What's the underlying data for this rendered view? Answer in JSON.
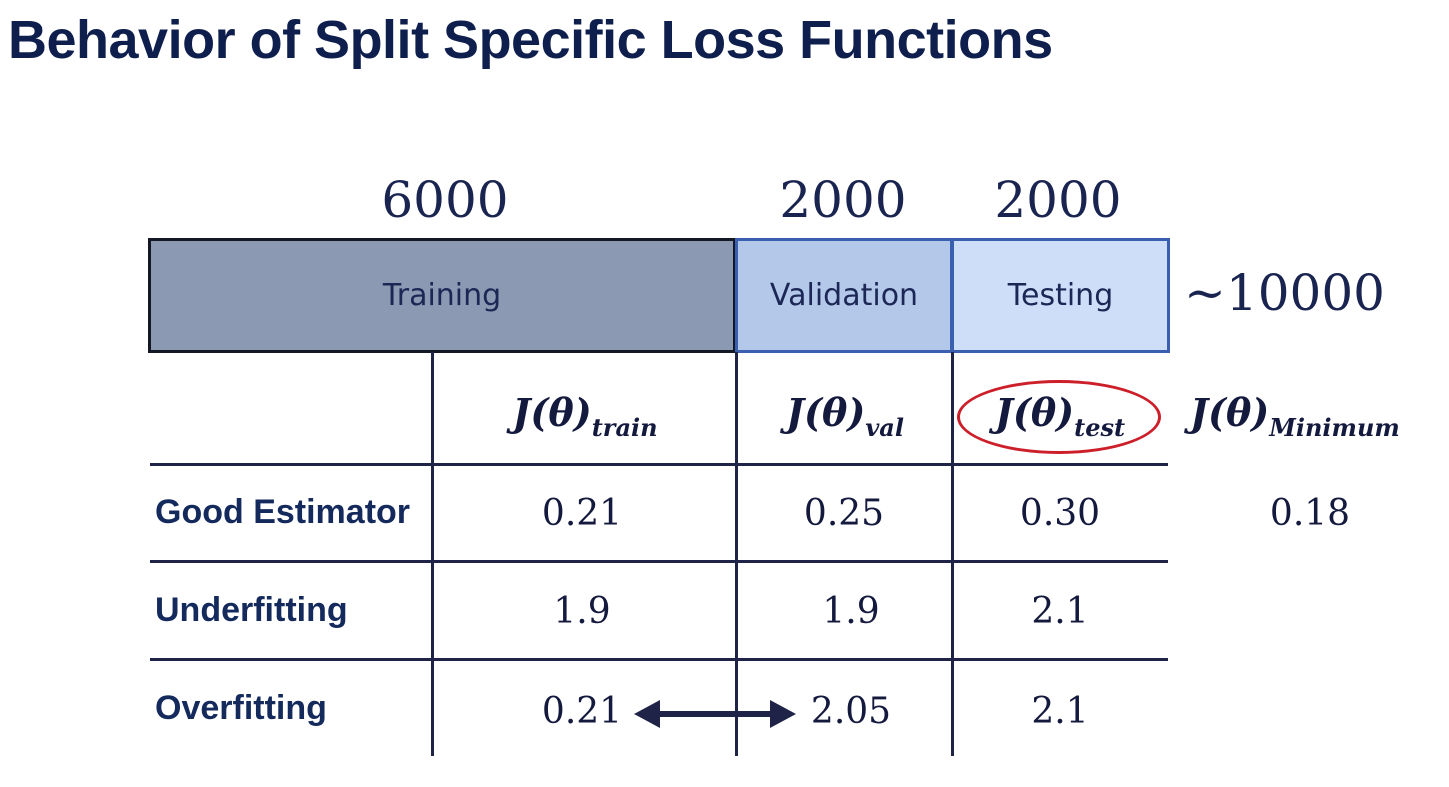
{
  "title": "Behavior of Split Specific Loss Functions",
  "counts": {
    "train": "6000",
    "val": "2000",
    "test": "2000",
    "total": "~10000"
  },
  "splits": {
    "train": "Training",
    "val": "Validation",
    "test": "Testing"
  },
  "headers": {
    "symbol": "J(θ)",
    "train_sub": "train",
    "val_sub": "val",
    "test_sub": "test",
    "min_sub": "Minimum"
  },
  "rows": [
    {
      "label": "Good Estimator",
      "train": "0.21",
      "val": "0.25",
      "test": "0.30",
      "min": "0.18"
    },
    {
      "label": "Underfitting",
      "train": "1.9",
      "val": "1.9",
      "test": "2.1"
    },
    {
      "label": "Overfitting",
      "train": "0.21",
      "val": "2.05",
      "test": "2.1"
    }
  ],
  "colors": {
    "title": "#0f1f4d",
    "training_fill": "#8b99b3",
    "validation_fill": "#b4c9ea",
    "testing_fill": "#cfdef8",
    "highlight_oval": "#cc1f2a",
    "lines": "#1f2348"
  },
  "annotations": {
    "overfit_arrow": "double-headed-arrow",
    "test_header_highlight": "red-oval"
  }
}
